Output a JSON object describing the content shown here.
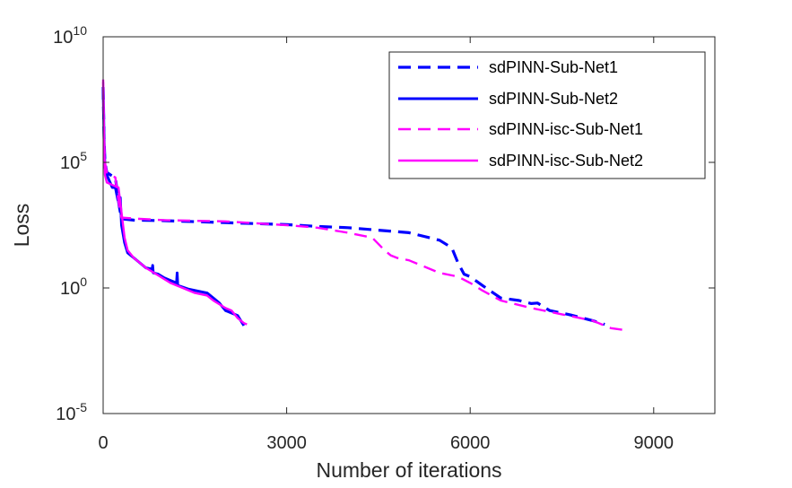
{
  "chart_data": {
    "type": "line",
    "xlabel": "Number of iterations",
    "ylabel": "Loss",
    "xlim": [
      0,
      10000
    ],
    "ylim_log10": [
      -5,
      10
    ],
    "yscale": "log",
    "x_ticks": [
      {
        "value": 0,
        "label": "0"
      },
      {
        "value": 3000,
        "label": "3000"
      },
      {
        "value": 6000,
        "label": "6000"
      },
      {
        "value": 9000,
        "label": "9000"
      }
    ],
    "y_ticks": [
      {
        "exp": 10,
        "base": "10",
        "sup": "10"
      },
      {
        "exp": 5,
        "base": "10",
        "sup": "5"
      },
      {
        "exp": 0,
        "base": "10",
        "sup": "0"
      },
      {
        "exp": -5,
        "base": "10",
        "sup": "-5"
      }
    ],
    "legend_position": "top-right",
    "series": [
      {
        "name": "sdPINN-Sub-Net1",
        "color": "#0000ff",
        "dash": "dashed",
        "width": 3.2,
        "points": [
          [
            0,
            8.0
          ],
          [
            15,
            6.0
          ],
          [
            30,
            5.0
          ],
          [
            60,
            4.6
          ],
          [
            120,
            4.5
          ],
          [
            200,
            4.4
          ],
          [
            260,
            3.3
          ],
          [
            300,
            2.75
          ],
          [
            500,
            2.7
          ],
          [
            1000,
            2.68
          ],
          [
            2000,
            2.6
          ],
          [
            3000,
            2.52
          ],
          [
            3500,
            2.45
          ],
          [
            4000,
            2.4
          ],
          [
            4500,
            2.3
          ],
          [
            5000,
            2.2
          ],
          [
            5500,
            1.9
          ],
          [
            5700,
            1.6
          ],
          [
            5800,
            1.0
          ],
          [
            5900,
            0.55
          ],
          [
            6000,
            0.45
          ],
          [
            6200,
            0.1
          ],
          [
            6500,
            -0.4
          ],
          [
            6800,
            -0.5
          ],
          [
            7000,
            -0.62
          ],
          [
            7100,
            -0.6
          ],
          [
            7300,
            -0.9
          ],
          [
            7600,
            -1.05
          ],
          [
            8000,
            -1.3
          ],
          [
            8200,
            -1.45
          ]
        ]
      },
      {
        "name": "sdPINN-Sub-Net2",
        "color": "#0000ff",
        "dash": "solid",
        "width": 3.0,
        "points": [
          [
            0,
            8.0
          ],
          [
            15,
            6.0
          ],
          [
            30,
            4.8
          ],
          [
            60,
            4.5
          ],
          [
            150,
            4.0
          ],
          [
            200,
            4.0
          ],
          [
            240,
            3.5
          ],
          [
            280,
            3.6
          ],
          [
            300,
            2.5
          ],
          [
            350,
            1.8
          ],
          [
            400,
            1.4
          ],
          [
            500,
            1.2
          ],
          [
            600,
            1.0
          ],
          [
            700,
            0.8
          ],
          [
            800,
            0.75
          ],
          [
            810,
            0.9
          ],
          [
            820,
            0.6
          ],
          [
            900,
            0.55
          ],
          [
            1000,
            0.4
          ],
          [
            1100,
            0.3
          ],
          [
            1200,
            0.2
          ],
          [
            1210,
            0.6
          ],
          [
            1220,
            0.1
          ],
          [
            1400,
            -0.05
          ],
          [
            1600,
            -0.15
          ],
          [
            1700,
            -0.2
          ],
          [
            1800,
            -0.4
          ],
          [
            1900,
            -0.6
          ],
          [
            2000,
            -0.9
          ],
          [
            2100,
            -1.0
          ],
          [
            2200,
            -1.1
          ],
          [
            2300,
            -1.5
          ]
        ]
      },
      {
        "name": "sdPINN-isc-Sub-Net1",
        "color": "#ff00ff",
        "dash": "dashed",
        "width": 2.4,
        "points": [
          [
            0,
            8.2
          ],
          [
            15,
            6.0
          ],
          [
            30,
            5.0
          ],
          [
            60,
            4.6
          ],
          [
            120,
            4.5
          ],
          [
            200,
            4.4
          ],
          [
            260,
            3.3
          ],
          [
            300,
            2.8
          ],
          [
            600,
            2.75
          ],
          [
            1000,
            2.7
          ],
          [
            2000,
            2.65
          ],
          [
            3000,
            2.5
          ],
          [
            3500,
            2.4
          ],
          [
            4000,
            2.2
          ],
          [
            4200,
            2.1
          ],
          [
            4400,
            2.0
          ],
          [
            4600,
            1.5
          ],
          [
            4700,
            1.3
          ],
          [
            4800,
            1.2
          ],
          [
            5000,
            1.1
          ],
          [
            5200,
            0.9
          ],
          [
            5500,
            0.6
          ],
          [
            5800,
            0.45
          ],
          [
            6000,
            0.2
          ],
          [
            6200,
            -0.1
          ],
          [
            6500,
            -0.5
          ],
          [
            7000,
            -0.8
          ],
          [
            7500,
            -1.05
          ],
          [
            8000,
            -1.3
          ],
          [
            8300,
            -1.6
          ],
          [
            8600,
            -1.7
          ]
        ]
      },
      {
        "name": "sdPINN-isc-Sub-Net2",
        "color": "#ff00ff",
        "dash": "solid",
        "width": 2.4,
        "points": [
          [
            0,
            8.3
          ],
          [
            15,
            6.0
          ],
          [
            30,
            4.5
          ],
          [
            60,
            4.2
          ],
          [
            150,
            4.1
          ],
          [
            250,
            4.0
          ],
          [
            300,
            3.0
          ],
          [
            350,
            2.0
          ],
          [
            400,
            1.5
          ],
          [
            500,
            1.2
          ],
          [
            700,
            0.8
          ],
          [
            900,
            0.5
          ],
          [
            1100,
            0.2
          ],
          [
            1300,
            0.0
          ],
          [
            1500,
            -0.2
          ],
          [
            1700,
            -0.3
          ],
          [
            1800,
            -0.5
          ],
          [
            2000,
            -0.8
          ],
          [
            2100,
            -0.9
          ],
          [
            2200,
            -1.2
          ],
          [
            2300,
            -1.4
          ],
          [
            2350,
            -1.45
          ]
        ]
      }
    ]
  }
}
